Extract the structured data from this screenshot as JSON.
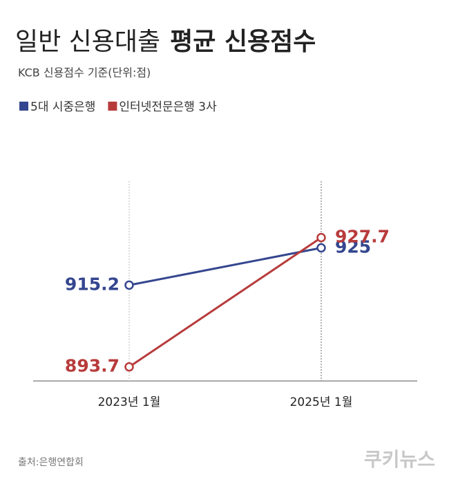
{
  "chart_data": {
    "type": "line",
    "title": [
      "일반 신용대출",
      "평균 신용점수"
    ],
    "subtitle": "KCB 신용점수 기준(단위:점)",
    "categories": [
      "2023년 1월",
      "2025년 1월"
    ],
    "series": [
      {
        "name": "5대 시중은행",
        "color": "#34468f",
        "values": [
          915.2,
          925
        ]
      },
      {
        "name": "인터넷전문은행 3사",
        "color": "#b83b3b",
        "values": [
          893.7,
          927.7
        ]
      }
    ],
    "ylim": [
      890,
      932
    ],
    "grid": true,
    "source": "출처:은행연합회",
    "logo": "쿠키뉴스"
  }
}
